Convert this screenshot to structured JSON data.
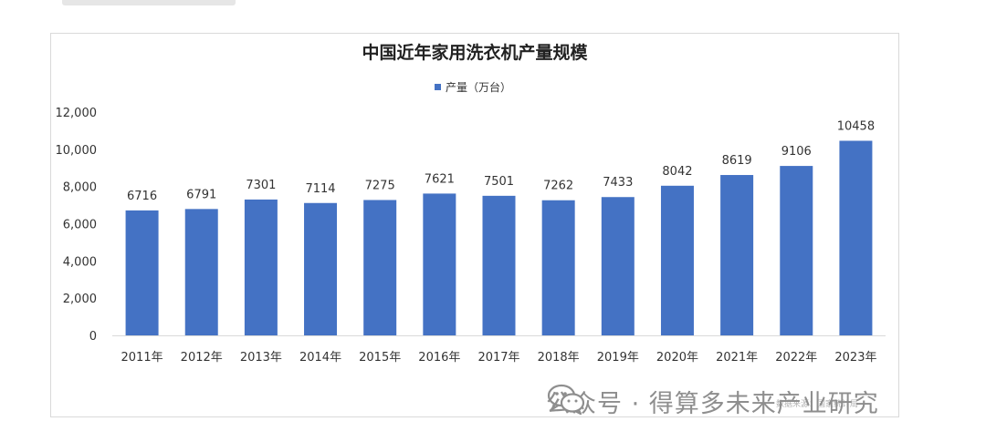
{
  "chart_data": {
    "type": "bar",
    "title": "中国近年家用洗衣机产量规模",
    "categories": [
      "2011年",
      "2012年",
      "2013年",
      "2014年",
      "2015年",
      "2016年",
      "2017年",
      "2018年",
      "2019年",
      "2020年",
      "2021年",
      "2022年",
      "2023年"
    ],
    "series": [
      {
        "name": "产量（万台）",
        "values": [
          6716,
          6791,
          7301,
          7114,
          7275,
          7621,
          7501,
          7262,
          7433,
          8042,
          8619,
          9106,
          10458
        ]
      }
    ],
    "ylim": [
      0,
      12000
    ],
    "yticks": [
      "0",
      "2,000",
      "4,000",
      "6,000",
      "8,000",
      "10,000",
      "12,000"
    ],
    "grid": false,
    "legend": "top-center",
    "bar_color": "#4472c4"
  },
  "source_note": "数据来源：国家统计局",
  "watermark": {
    "icon": "wechat-icon",
    "text": "公众号 · 得算多未来产业研究"
  }
}
